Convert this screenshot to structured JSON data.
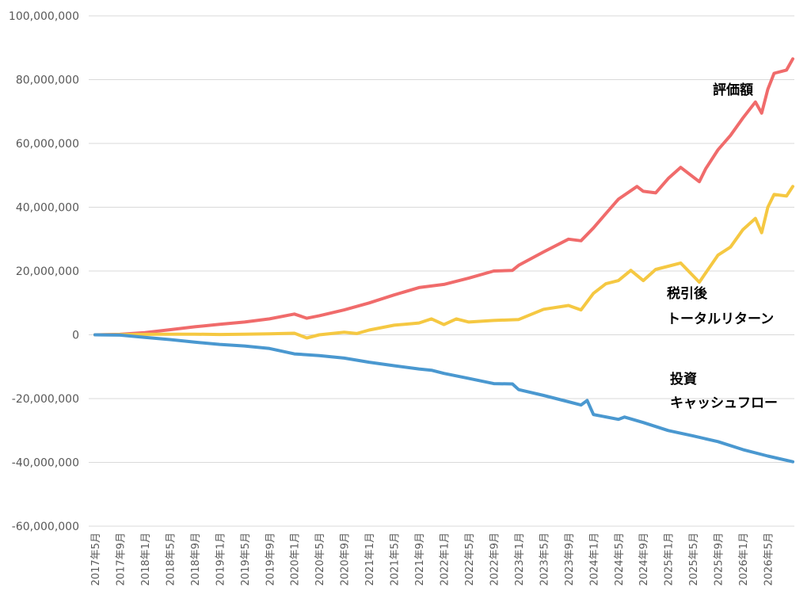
{
  "chart_data": {
    "type": "line",
    "ylim": [
      -60000000,
      100000000
    ],
    "ytick_step": 20000000,
    "yticks": [
      {
        "value": 100000000,
        "label": "100,000,000"
      },
      {
        "value": 80000000,
        "label": "80,000,000"
      },
      {
        "value": 60000000,
        "label": "60,000,000"
      },
      {
        "value": 40000000,
        "label": "40,000,000"
      },
      {
        "value": 20000000,
        "label": "20,000,000"
      },
      {
        "value": 0,
        "label": "0"
      },
      {
        "value": -20000000,
        "label": "-20,000,000"
      },
      {
        "value": -40000000,
        "label": "-40,000,000"
      },
      {
        "value": -60000000,
        "label": "-60,000,000"
      }
    ],
    "x_start": "2017年5月",
    "x_end": "2026年9月",
    "x_tick_labels": [
      "2017年5月",
      "2017年9月",
      "2018年1月",
      "2018年5月",
      "2018年9月",
      "2019年1月",
      "2019年5月",
      "2019年9月",
      "2020年1月",
      "2020年5月",
      "2020年9月",
      "2021年1月",
      "2021年5月",
      "2021年9月",
      "2022年1月",
      "2022年5月",
      "2022年9月",
      "2023年1月",
      "2023年5月",
      "2023年9月",
      "2024年1月",
      "2024年5月",
      "2024年9月",
      "2025年1月",
      "2025年5月",
      "2025年9月",
      "2026年1月",
      "2026年5月"
    ],
    "grid": true,
    "legend": "none",
    "series": [
      {
        "name": "評価額",
        "color": "#f06b6b",
        "points": [
          [
            "2017年5月",
            0
          ],
          [
            "2017年9月",
            150000
          ],
          [
            "2018年1月",
            700000
          ],
          [
            "2018年5月",
            1600000
          ],
          [
            "2018年9月",
            2500000
          ],
          [
            "2019年1月",
            3300000
          ],
          [
            "2019年5月",
            4000000
          ],
          [
            "2019年9月",
            5000000
          ],
          [
            "2020年1月",
            6500000
          ],
          [
            "2020年3月",
            5200000
          ],
          [
            "2020年5月",
            6000000
          ],
          [
            "2020年9月",
            7800000
          ],
          [
            "2021年1月",
            10000000
          ],
          [
            "2021年5月",
            12500000
          ],
          [
            "2021年9月",
            14800000
          ],
          [
            "2022年1月",
            15800000
          ],
          [
            "2022年5月",
            17800000
          ],
          [
            "2022年9月",
            20000000
          ],
          [
            "2022年12月",
            20200000
          ],
          [
            "2023年1月",
            21800000
          ],
          [
            "2023年5月",
            26000000
          ],
          [
            "2023年9月",
            30000000
          ],
          [
            "2023年11月",
            29500000
          ],
          [
            "2024年1月",
            33500000
          ],
          [
            "2024年3月",
            38000000
          ],
          [
            "2024年5月",
            42500000
          ],
          [
            "2024年8月",
            46500000
          ],
          [
            "2024年9月",
            45000000
          ],
          [
            "2024年11月",
            44500000
          ],
          [
            "2025年1月",
            49000000
          ],
          [
            "2025年3月",
            52500000
          ],
          [
            "2025年6月",
            48000000
          ],
          [
            "2025年7月",
            52000000
          ],
          [
            "2025年9月",
            58000000
          ],
          [
            "2025年11月",
            62500000
          ],
          [
            "2026年1月",
            68000000
          ],
          [
            "2026年3月",
            73000000
          ],
          [
            "2026年4月",
            69500000
          ],
          [
            "2026年5月",
            77000000
          ],
          [
            "2026年6月",
            82000000
          ],
          [
            "2026年8月",
            83000000
          ],
          [
            "2026年9月",
            86500000
          ]
        ]
      },
      {
        "name": "税引後トータルリターン",
        "color": "#f5c842",
        "points": [
          [
            "2017年5月",
            0
          ],
          [
            "2017年9月",
            50000
          ],
          [
            "2018年1月",
            150000
          ],
          [
            "2018年5月",
            200000
          ],
          [
            "2018年9月",
            200000
          ],
          [
            "2019年1月",
            100000
          ],
          [
            "2019年5月",
            200000
          ],
          [
            "2019年9月",
            300000
          ],
          [
            "2020年1月",
            500000
          ],
          [
            "2020年3月",
            -1000000
          ],
          [
            "2020年5月",
            0
          ],
          [
            "2020年9月",
            800000
          ],
          [
            "2020年11月",
            400000
          ],
          [
            "2021年1月",
            1500000
          ],
          [
            "2021年5月",
            3000000
          ],
          [
            "2021年9月",
            3700000
          ],
          [
            "2021年11月",
            5000000
          ],
          [
            "2022年1月",
            3200000
          ],
          [
            "2022年3月",
            5000000
          ],
          [
            "2022年5月",
            4000000
          ],
          [
            "2022年9月",
            4500000
          ],
          [
            "2023年1月",
            4800000
          ],
          [
            "2023年5月",
            8000000
          ],
          [
            "2023年9月",
            9200000
          ],
          [
            "2023年11月",
            7800000
          ],
          [
            "2024年1月",
            13000000
          ],
          [
            "2024年3月",
            16000000
          ],
          [
            "2024年5月",
            17000000
          ],
          [
            "2024年7月",
            20200000
          ],
          [
            "2024年9月",
            17000000
          ],
          [
            "2024年11月",
            20500000
          ],
          [
            "2025年1月",
            21500000
          ],
          [
            "2025年3月",
            22500000
          ],
          [
            "2025年6月",
            16500000
          ],
          [
            "2025年9月",
            25000000
          ],
          [
            "2025年11月",
            27500000
          ],
          [
            "2026年1月",
            33000000
          ],
          [
            "2026年3月",
            36500000
          ],
          [
            "2026年4月",
            32000000
          ],
          [
            "2026年5月",
            40000000
          ],
          [
            "2026年6月",
            44000000
          ],
          [
            "2026年8月",
            43500000
          ],
          [
            "2026年9月",
            46500000
          ]
        ]
      },
      {
        "name": "投資キャッシュフロー",
        "color": "#4a98d0",
        "points": [
          [
            "2017年5月",
            0
          ],
          [
            "2017年9月",
            -100000
          ],
          [
            "2018年1月",
            -800000
          ],
          [
            "2018年5月",
            -1500000
          ],
          [
            "2018年9月",
            -2300000
          ],
          [
            "2019年1月",
            -3000000
          ],
          [
            "2019年5月",
            -3500000
          ],
          [
            "2019年9月",
            -4300000
          ],
          [
            "2020年1月",
            -6000000
          ],
          [
            "2020年5月",
            -6500000
          ],
          [
            "2020年9月",
            -7300000
          ],
          [
            "2021年1月",
            -8600000
          ],
          [
            "2021年5月",
            -9700000
          ],
          [
            "2021年9月",
            -10700000
          ],
          [
            "2021年11月",
            -11100000
          ],
          [
            "2022年1月",
            -12100000
          ],
          [
            "2022年5月",
            -13700000
          ],
          [
            "2022年9月",
            -15300000
          ],
          [
            "2022年12月",
            -15400000
          ],
          [
            "2023年1月",
            -17200000
          ],
          [
            "2023年5月",
            -19000000
          ],
          [
            "2023年9月",
            -21000000
          ],
          [
            "2023年11月",
            -22000000
          ],
          [
            "2023年12月",
            -20600000
          ],
          [
            "2024年1月",
            -25000000
          ],
          [
            "2024年5月",
            -26500000
          ],
          [
            "2024年6月",
            -25800000
          ],
          [
            "2024年9月",
            -27500000
          ],
          [
            "2025年1月",
            -30000000
          ],
          [
            "2025年5月",
            -31700000
          ],
          [
            "2025年9月",
            -33500000
          ],
          [
            "2026年1月",
            -36000000
          ],
          [
            "2026年5月",
            -38000000
          ],
          [
            "2026年9月",
            -39800000
          ]
        ]
      }
    ],
    "annotations": [
      {
        "id": "hyoka",
        "lines": [
          "評価額"
        ]
      },
      {
        "id": "zeibiki",
        "lines": [
          "税引後",
          "トータルリターン"
        ]
      },
      {
        "id": "toshi",
        "lines": [
          "投資",
          "キャッシュフロー"
        ]
      }
    ]
  }
}
